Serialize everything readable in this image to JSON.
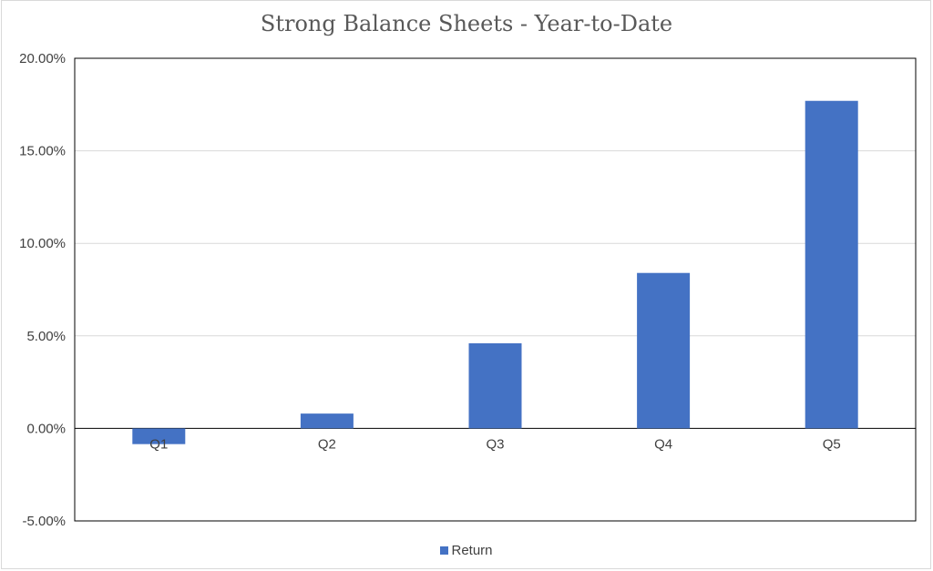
{
  "chart_data": {
    "type": "bar",
    "title": "Strong Balance Sheets - Year-to-Date",
    "categories": [
      "Q1",
      "Q2",
      "Q3",
      "Q4",
      "Q5"
    ],
    "series": [
      {
        "name": "Return",
        "values": [
          -0.85,
          0.8,
          4.6,
          8.4,
          17.7
        ]
      }
    ],
    "ylim": [
      -5,
      20
    ],
    "yticks": [
      "20.00%",
      "15.00%",
      "10.00%",
      "5.00%",
      "0.00%",
      "-5.00%"
    ],
    "ytick_values": [
      20,
      15,
      10,
      5,
      0,
      -5
    ],
    "xlabel": "",
    "ylabel": "",
    "grid": true,
    "legend": "bottom",
    "color": "#4472C4"
  }
}
